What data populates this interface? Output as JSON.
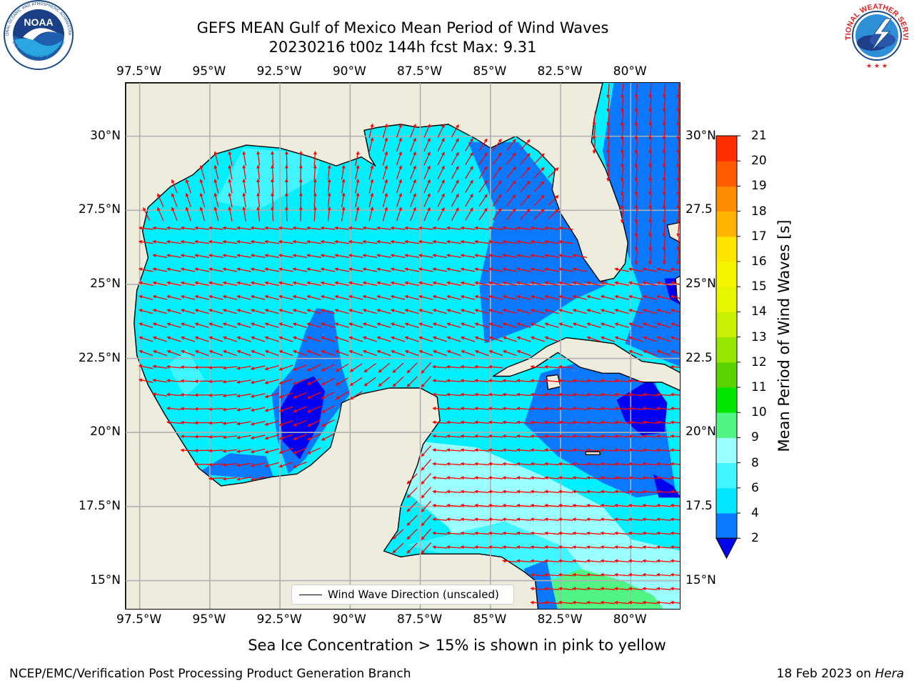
{
  "header": {
    "title_line1": "GEFS MEAN Gulf of Mexico Mean Period of Wind Waves",
    "title_line2": "20230216 t00z 144h fcst   Max: 9.31"
  },
  "logos": {
    "noaa_text": "NOAA",
    "noaa_ring_text": "NATIONAL OCEANIC AND ATMOSPHERIC ADMINISTRATION",
    "noaa_ring_bottom": "U.S. DEPARTMENT OF COMMERCE",
    "nws_ring_text": "NATIONAL WEATHER SERVICE"
  },
  "map": {
    "lon_labels": [
      "97.5°W",
      "95°W",
      "92.5°W",
      "90°W",
      "87.5°W",
      "85°W",
      "82.5°W",
      "80°W"
    ],
    "lat_labels_left": [
      "30°N",
      "27.5°N",
      "25°N",
      "22.5°N",
      "20°N",
      "17.5°N",
      "15°N"
    ],
    "lat_labels_right": [
      "30°N",
      "27.5",
      "25°N",
      "22.5",
      "20°N",
      "17.5",
      "15°N"
    ],
    "legend_label": "Wind Wave Direction (unscaled)",
    "extent": {
      "lon_min": -98.0,
      "lon_max": -78.2,
      "lat_min": 14.0,
      "lat_max": 31.8
    },
    "colors": {
      "land": "#eeecdc",
      "grid": "#b0b0b0",
      "arrow": "#ff0000",
      "coast": "#000000"
    }
  },
  "colorbar": {
    "label": "Mean Period of Wind Waves [s]",
    "ticks": [
      "2",
      "4",
      "6",
      "8",
      "9",
      "10",
      "11",
      "12",
      "13",
      "14",
      "15",
      "16",
      "17",
      "18",
      "19",
      "20",
      "21"
    ],
    "colors": [
      "#0a78ff",
      "#00e6ff",
      "#40f5ff",
      "#9cffff",
      "#50f583",
      "#00e600",
      "#5ad200",
      "#96e600",
      "#c8f000",
      "#e6f500",
      "#f5f500",
      "#ffe600",
      "#ffb400",
      "#ff8c00",
      "#ff5a00",
      "#ff2d00"
    ],
    "extend_color": "#0000f0"
  },
  "footer": {
    "ice_note": "Sea Ice Concentration > 15% is shown in pink to yellow",
    "left": "NCEP/EMC/Verification Post Processing Product Generation Branch",
    "date": "18 Feb 2023 on ",
    "host": "Hera"
  }
}
